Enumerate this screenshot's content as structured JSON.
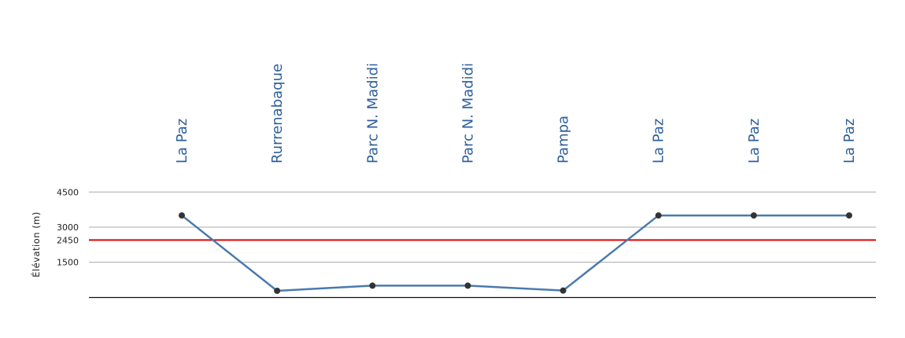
{
  "chart_data": {
    "type": "line",
    "title": "",
    "xlabel": "",
    "ylabel": "Élévation (m)",
    "ylim": [
      0,
      4500
    ],
    "yticks": [
      1500,
      2450,
      3000,
      4500
    ],
    "ytick_labels": [
      "1500",
      "2450",
      "3000",
      "4500"
    ],
    "grid": true,
    "categories": [
      "La Paz",
      "Rurrenabaque",
      "Parc N. Madidi",
      "Parc N. Madidi",
      "Pampa",
      "La Paz",
      "La Paz",
      "La Paz"
    ],
    "series": [
      {
        "values": [
          3500,
          280,
          500,
          500,
          290,
          3500,
          3500,
          3500
        ]
      }
    ],
    "reference_line": {
      "value": 2450
    },
    "colors": {
      "line": "#4a7aae",
      "marker": "#333333",
      "reference": "#e00000",
      "labels": "#2e5f9c",
      "grid": "#aaaaaa"
    }
  }
}
